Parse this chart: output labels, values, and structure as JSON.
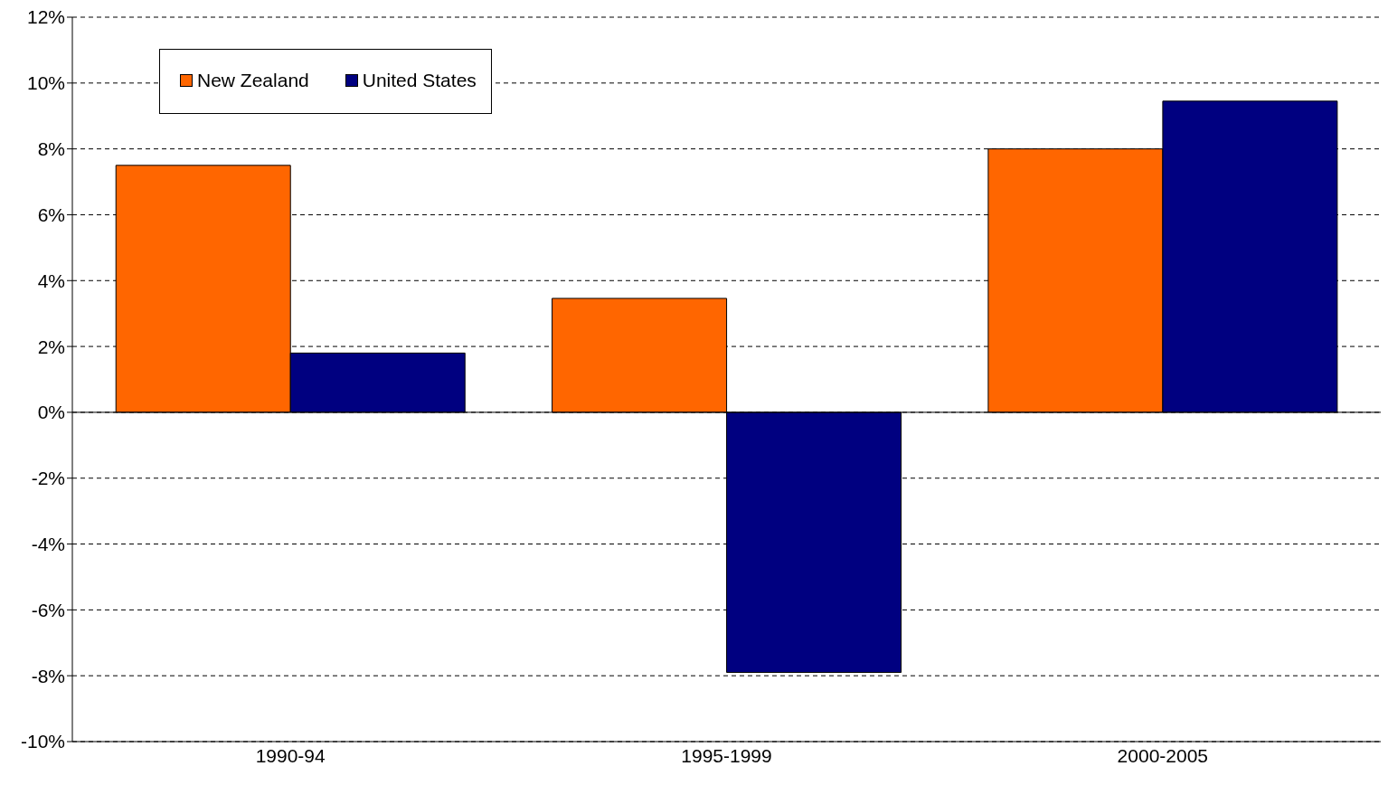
{
  "chart_data": {
    "type": "bar",
    "categories": [
      "1990-94",
      "1995-1999",
      "2000-2005"
    ],
    "series": [
      {
        "name": "New Zealand",
        "color": "#ff6600",
        "values": [
          7.5,
          3.46,
          8.0
        ]
      },
      {
        "name": "United States",
        "color": "#000080",
        "values": [
          1.8,
          -7.9,
          9.45
        ]
      }
    ],
    "ylim": [
      -10,
      12
    ],
    "yticks": [
      {
        "value": -10,
        "label": "-10%"
      },
      {
        "value": -8,
        "label": "-8%"
      },
      {
        "value": -6,
        "label": "-6%"
      },
      {
        "value": -4,
        "label": "-4%"
      },
      {
        "value": -2,
        "label": "-2%"
      },
      {
        "value": 0,
        "label": "0%"
      },
      {
        "value": 2,
        "label": "2%"
      },
      {
        "value": 4,
        "label": "4%"
      },
      {
        "value": 6,
        "label": "6%"
      },
      {
        "value": 8,
        "label": "8%"
      },
      {
        "value": 10,
        "label": "10%"
      },
      {
        "value": 12,
        "label": "12%"
      }
    ],
    "grid": "y",
    "legend": "top left"
  }
}
